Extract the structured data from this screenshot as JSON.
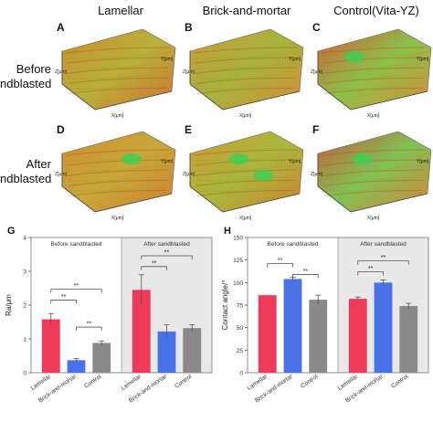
{
  "column_headers": [
    "Lamellar",
    "Brick-and-mortar",
    "Control(Vita-YZ)"
  ],
  "row_headers": [
    {
      "line1": "Before",
      "line2": "ndblasted"
    },
    {
      "line1": "After",
      "line2": "ndblasted"
    }
  ],
  "surface_panels": [
    {
      "letter": "A",
      "axis_y": "Y[μm]",
      "axis_x": "X[μm]",
      "axis_z": "Z[μm]",
      "colors": [
        "#c98a2f",
        "#b9b13a",
        "#d2702e"
      ],
      "green": []
    },
    {
      "letter": "B",
      "axis_y": "Y[μm]",
      "axis_x": "X[μm]",
      "axis_z": "Z[μm]",
      "colors": [
        "#c99a3a",
        "#a7b43c",
        "#d58a35"
      ],
      "green": []
    },
    {
      "letter": "C",
      "axis_y": "Y[μm]",
      "axis_x": "X[μm]",
      "axis_z": "Z[μm]",
      "colors": [
        "#cf5a36",
        "#8cc24a",
        "#d88a3a"
      ],
      "green": [
        0.2
      ]
    },
    {
      "letter": "D",
      "axis_y": "Y[μm]",
      "axis_x": "X[μm]",
      "axis_z": "Z[μm]",
      "colors": [
        "#d08a2f",
        "#c7a93a",
        "#d07d2c"
      ],
      "green": [
        0.6
      ]
    },
    {
      "letter": "E",
      "axis_y": "Y[μm]",
      "axis_x": "X[μm]",
      "axis_z": "Z[μm]",
      "colors": [
        "#cf9a35",
        "#a9b83c",
        "#cf7f30"
      ],
      "green": [
        0.35,
        0.65
      ]
    },
    {
      "letter": "F",
      "axis_y": "Y[μm]",
      "axis_x": "X[μm]",
      "axis_z": "Z[μm]",
      "colors": [
        "#c9563a",
        "#7fc354",
        "#d9823c"
      ],
      "green": [
        0.3
      ]
    }
  ],
  "chart_data": [
    {
      "type": "bar",
      "panel_letter": "G",
      "ylabel": "Ra/μm",
      "ylim": [
        0,
        4
      ],
      "yticks": [
        "0",
        "1",
        "2",
        "3",
        "4"
      ],
      "group_labels": [
        "Before sandblasted",
        "After sandblasted"
      ],
      "categories": [
        "Lamellar",
        "Brick-and-mortar",
        "Control"
      ],
      "groups": [
        {
          "values": [
            1.58,
            0.37,
            0.88
          ],
          "errors": [
            0.17,
            0.05,
            0.06
          ]
        },
        {
          "values": [
            2.45,
            1.22,
            1.32
          ],
          "errors": [
            0.45,
            0.2,
            0.1
          ]
        }
      ],
      "significance": [
        "**",
        "**",
        "**",
        "**",
        "**"
      ],
      "colors": [
        "#f03a59",
        "#4a72e8",
        "#8a8a8a"
      ],
      "shade_second_group": true
    },
    {
      "type": "bar",
      "panel_letter": "H",
      "ylabel": "Contact angle/°",
      "ylim": [
        0,
        150
      ],
      "yticks": [
        "0",
        "25",
        "50",
        "75",
        "100",
        "125",
        "150"
      ],
      "group_labels": [
        "Before sandblasted",
        "After sandblasted"
      ],
      "categories": [
        "Lamellar",
        "Brick-and-mortar",
        "Control"
      ],
      "groups": [
        {
          "values": [
            86,
            104,
            81
          ],
          "errors": [
            0,
            2,
            5
          ]
        },
        {
          "values": [
            82,
            100,
            74
          ],
          "errors": [
            2,
            3,
            3
          ]
        }
      ],
      "significance": [
        "**",
        "**",
        "**",
        "**",
        "**"
      ],
      "colors": [
        "#f03a59",
        "#4a72e8",
        "#8a8a8a"
      ],
      "shade_second_group": true
    }
  ]
}
